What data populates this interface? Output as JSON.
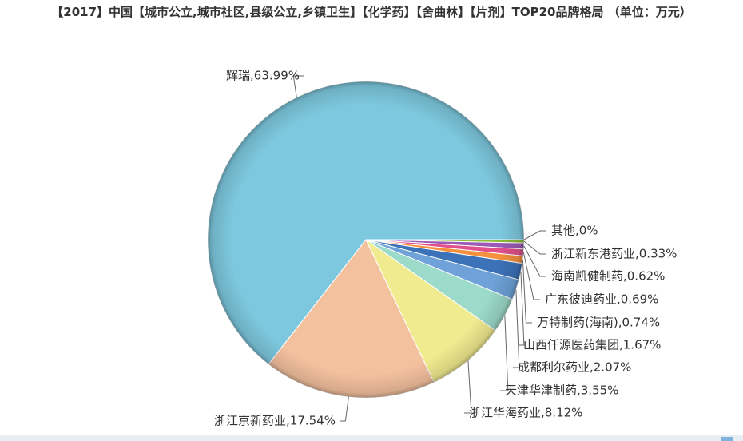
{
  "chart_data": {
    "type": "pie",
    "title": "【2017】中国【城市公立,城市社区,县级公立,乡镇卫生】【化学药】【舍曲林】【片剂】TOP20品牌格局 （单位：万元）",
    "values": [
      0,
      0.33,
      0.62,
      0.69,
      0.74,
      1.67,
      2.07,
      3.55,
      8.12,
      17.54,
      63.99
    ],
    "value_labels": [
      "其他,0%",
      "浙江新东港药业,0.33%",
      "海南凯健制药,0.62%",
      "广东彼迪药业,0.69%",
      "万特制药(海南),0.74%",
      "山西仟源医药集团,1.67%",
      "成都利尔药业,2.07%",
      "天津华津制药,3.55%",
      "浙江华海药业,8.12%",
      "浙江京新药业,17.54%",
      "辉瑞,63.99%"
    ],
    "colors": [
      "#bdbdbd",
      "#8cbb34",
      "#9b5ab5",
      "#e0508a",
      "#f4903e",
      "#3c72b8",
      "#6ea2d8",
      "#9cdac9",
      "#f1eb8f",
      "#f4c19f",
      "#7dc8de"
    ]
  }
}
